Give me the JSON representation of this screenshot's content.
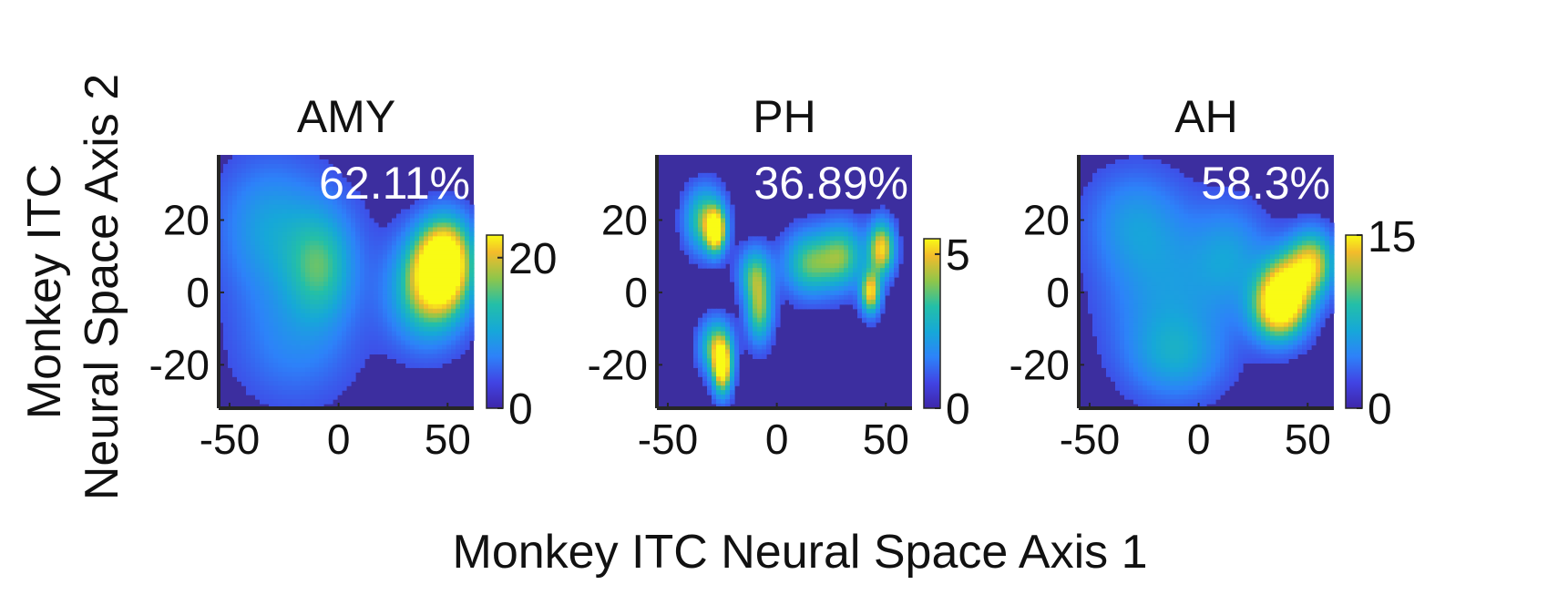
{
  "figure": {
    "ylabel_line1": "Monkey ITC",
    "ylabel_line2": "Neural Space Axis 2",
    "xlabel": "Monkey ITC Neural Space Axis 1"
  },
  "chart_data": [
    {
      "type": "heatmap",
      "title": "AMY",
      "annotation": "62.11%",
      "xlim": [
        -55,
        62
      ],
      "ylim": [
        -32,
        38
      ],
      "xticks": [
        -50,
        0,
        50
      ],
      "yticks": [
        -20,
        0,
        20
      ],
      "colorbar": {
        "min": 0,
        "max": 23,
        "ticks": [
          0,
          20
        ]
      },
      "background_color": "#3c2e9f",
      "hotspots": [
        {
          "x": 47,
          "y": 6,
          "value": 23,
          "sx": 9,
          "sy": 8
        },
        {
          "x": 40,
          "y": 0,
          "value": 12,
          "sx": 12,
          "sy": 10
        },
        {
          "x": 50,
          "y": 12,
          "value": 10,
          "sx": 8,
          "sy": 7
        },
        {
          "x": -8,
          "y": 7,
          "value": 9,
          "sx": 10,
          "sy": 10
        },
        {
          "x": -20,
          "y": 12,
          "value": 5,
          "sx": 20,
          "sy": 15
        },
        {
          "x": -35,
          "y": 20,
          "value": 4,
          "sx": 15,
          "sy": 12
        },
        {
          "x": -20,
          "y": -15,
          "value": 4,
          "sx": 20,
          "sy": 12
        }
      ]
    },
    {
      "type": "heatmap",
      "title": "PH",
      "annotation": "36.89%",
      "xlim": [
        -55,
        62
      ],
      "ylim": [
        -32,
        38
      ],
      "xticks": [
        -50,
        0,
        50
      ],
      "yticks": [
        -20,
        0,
        20
      ],
      "colorbar": {
        "min": 0,
        "max": 5.5,
        "ticks": [
          0,
          5
        ]
      },
      "background_color": "#3c2e9f",
      "hotspots": [
        {
          "x": -28,
          "y": 17,
          "value": 5.5,
          "sx": 3,
          "sy": 4
        },
        {
          "x": -33,
          "y": 20,
          "value": 3.5,
          "sx": 6,
          "sy": 6
        },
        {
          "x": -25,
          "y": -21,
          "value": 5.5,
          "sx": 3,
          "sy": 5
        },
        {
          "x": -28,
          "y": -15,
          "value": 3.5,
          "sx": 5,
          "sy": 5
        },
        {
          "x": 48,
          "y": 12,
          "value": 5,
          "sx": 4,
          "sy": 5
        },
        {
          "x": 43,
          "y": 0,
          "value": 5,
          "sx": 3,
          "sy": 4
        },
        {
          "x": -8,
          "y": -5,
          "value": 3.5,
          "sx": 4,
          "sy": 6
        },
        {
          "x": 15,
          "y": 8,
          "value": 3.2,
          "sx": 8,
          "sy": 6
        },
        {
          "x": 30,
          "y": 10,
          "value": 3.2,
          "sx": 7,
          "sy": 6
        },
        {
          "x": -10,
          "y": 5,
          "value": 3,
          "sx": 5,
          "sy": 5
        }
      ]
    },
    {
      "type": "heatmap",
      "title": "AH",
      "annotation": "58.3%",
      "xlim": [
        -55,
        62
      ],
      "ylim": [
        -32,
        38
      ],
      "xticks": [
        -50,
        0,
        50
      ],
      "yticks": [
        -20,
        0,
        20
      ],
      "colorbar": {
        "min": 0,
        "max": 15,
        "ticks": [
          0,
          15
        ]
      },
      "background_color": "#3c2e9f",
      "hotspots": [
        {
          "x": 40,
          "y": 0,
          "value": 15,
          "sx": 8,
          "sy": 7
        },
        {
          "x": 52,
          "y": 8,
          "value": 12,
          "sx": 7,
          "sy": 6
        },
        {
          "x": 35,
          "y": -5,
          "value": 9,
          "sx": 8,
          "sy": 6
        },
        {
          "x": -15,
          "y": 0,
          "value": 4,
          "sx": 20,
          "sy": 15
        },
        {
          "x": -30,
          "y": 20,
          "value": 3.5,
          "sx": 15,
          "sy": 10
        },
        {
          "x": -10,
          "y": -18,
          "value": 4,
          "sx": 15,
          "sy": 8
        },
        {
          "x": 15,
          "y": 10,
          "value": 4,
          "sx": 12,
          "sy": 10
        }
      ]
    }
  ]
}
